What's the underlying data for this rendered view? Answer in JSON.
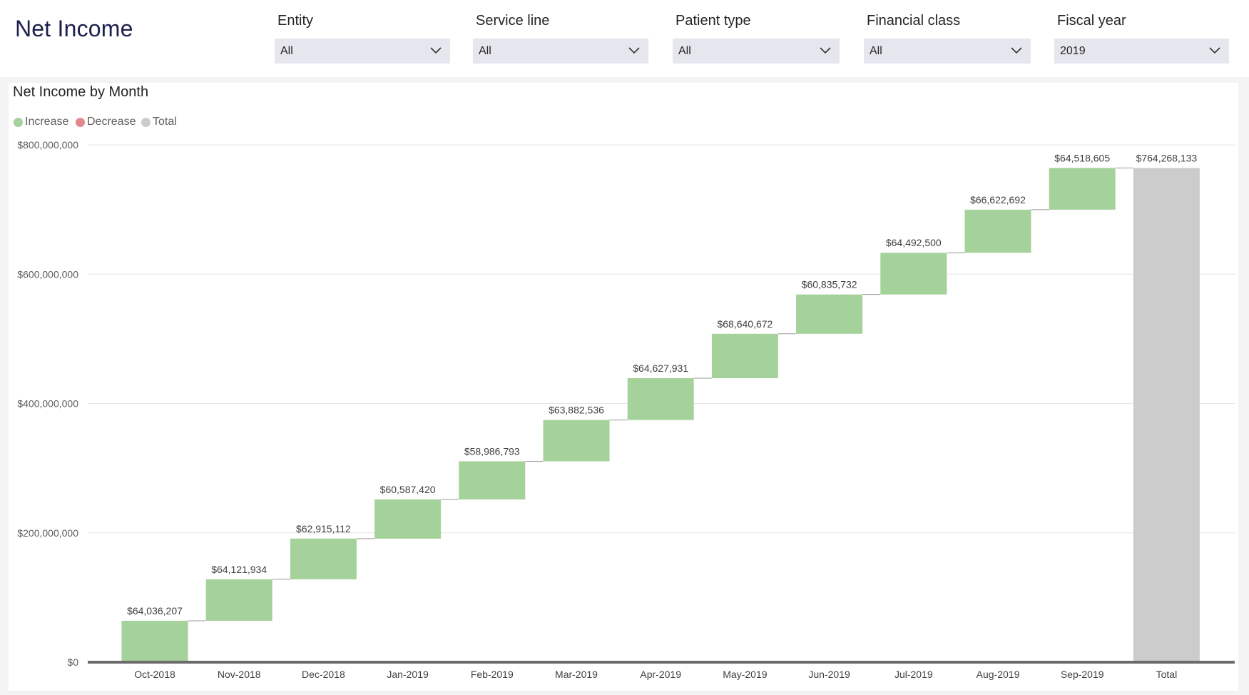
{
  "page": {
    "title": "Net Income"
  },
  "filters": [
    {
      "label": "Entity",
      "value": "All"
    },
    {
      "label": "Service line",
      "value": "All"
    },
    {
      "label": "Patient type",
      "value": "All"
    },
    {
      "label": "Financial class",
      "value": "All"
    },
    {
      "label": "Fiscal year",
      "value": "2019"
    }
  ],
  "chart": {
    "title": "Net Income by Month",
    "legend": [
      {
        "label": "Increase",
        "color": "#a5d19b"
      },
      {
        "label": "Decrease",
        "color": "#e08a8f"
      },
      {
        "label": "Total",
        "color": "#cccccc"
      }
    ]
  },
  "chart_data": {
    "type": "waterfall",
    "title": "Net Income by Month",
    "categories": [
      "Oct-2018",
      "Nov-2018",
      "Dec-2018",
      "Jan-2019",
      "Feb-2019",
      "Mar-2019",
      "Apr-2019",
      "May-2019",
      "Jun-2019",
      "Jul-2019",
      "Aug-2019",
      "Sep-2019",
      "Total"
    ],
    "values": [
      64036207,
      64121934,
      62915112,
      60587420,
      58986793,
      63882536,
      64627931,
      68640672,
      60835732,
      64492500,
      66622692,
      64518605,
      764268133
    ],
    "value_labels": [
      "$64,036,207",
      "$64,121,934",
      "$62,915,112",
      "$60,587,420",
      "$58,986,793",
      "$63,882,536",
      "$64,627,931",
      "$68,640,672",
      "$60,835,732",
      "$64,492,500",
      "$66,622,692",
      "$64,518,605",
      "$764,268,133"
    ],
    "kinds": [
      "increase",
      "increase",
      "increase",
      "increase",
      "increase",
      "increase",
      "increase",
      "increase",
      "increase",
      "increase",
      "increase",
      "increase",
      "total"
    ],
    "y_ticks": [
      0,
      200000000,
      400000000,
      600000000,
      800000000
    ],
    "y_tick_labels": [
      "$0",
      "$200,000,000",
      "$400,000,000",
      "$600,000,000",
      "$800,000,000"
    ],
    "ylim": [
      0,
      800000000
    ],
    "grid": true,
    "legend_position": "top-left",
    "colors": {
      "increase": "#a5d19b",
      "decrease": "#e08a8f",
      "total": "#cccccc"
    }
  }
}
